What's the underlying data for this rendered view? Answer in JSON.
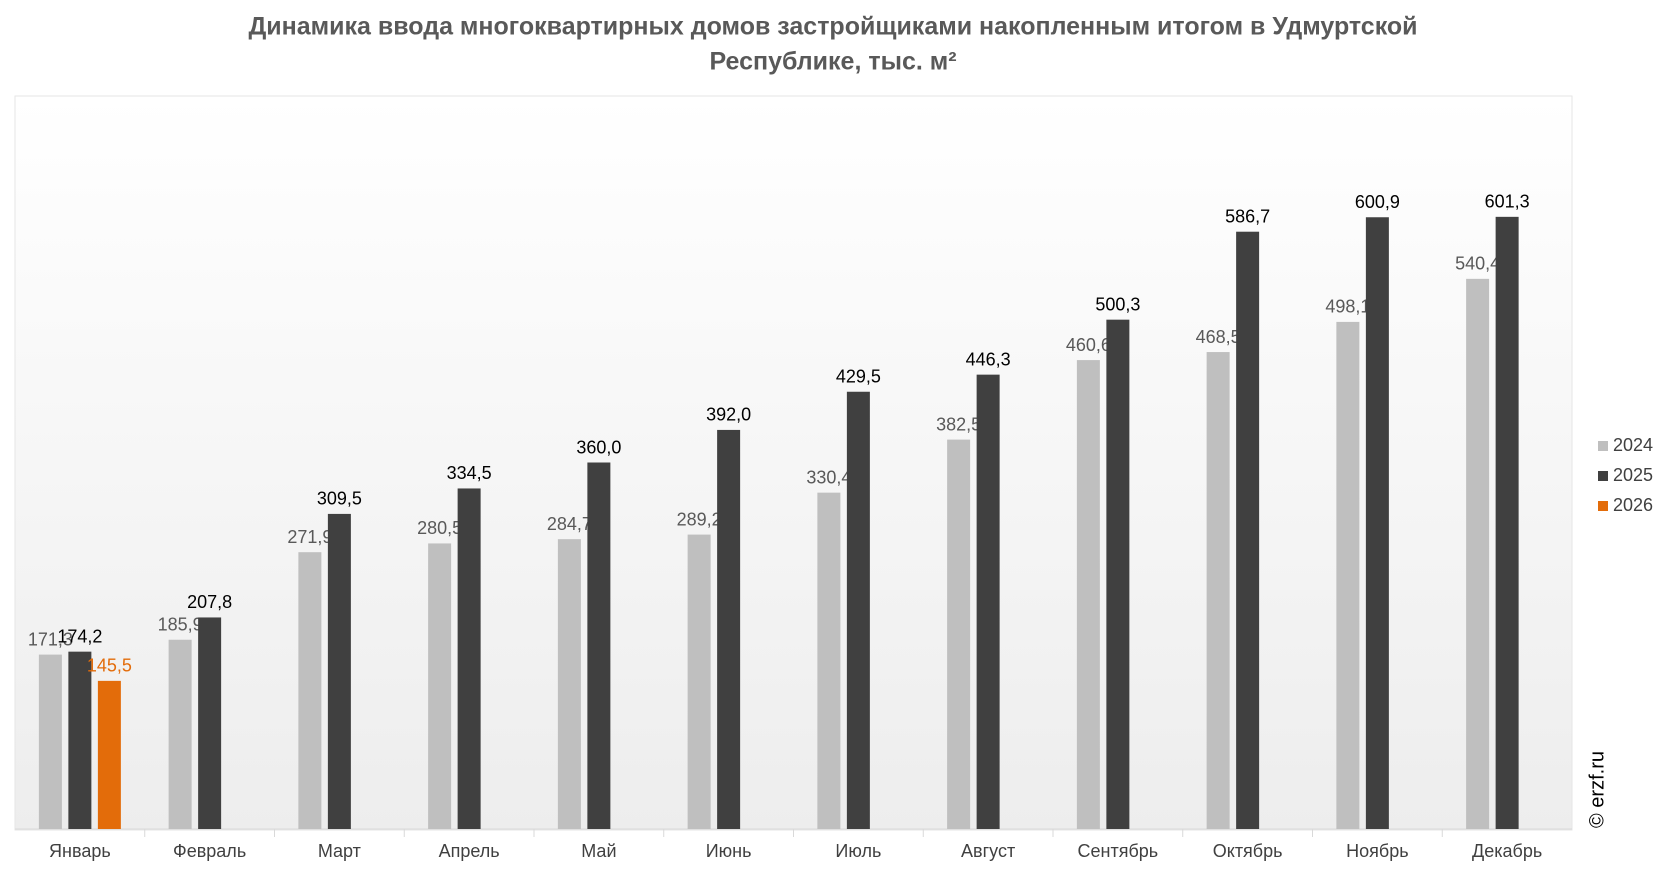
{
  "chart_data": {
    "type": "bar",
    "title": [
      "Динамика ввода многоквартирных домов застройщиками накопленным итогом в Удмуртской",
      "Республике, тыс. м²"
    ],
    "categories": [
      "Январь",
      "Февраль",
      "Март",
      "Апрель",
      "Май",
      "Июнь",
      "Июль",
      "Август",
      "Сентябрь",
      "Октябрь",
      "Ноябрь",
      "Декабрь"
    ],
    "series": [
      {
        "name": "2024",
        "color": "#bfbfbf",
        "values": [
          171.3,
          185.9,
          271.9,
          280.5,
          284.7,
          289.2,
          330.4,
          382.5,
          460.6,
          468.5,
          498.1,
          540.4
        ],
        "value_labels": [
          "171,3",
          "185,9",
          "271,9",
          "280,5",
          "284,7",
          "289,2",
          "330,4",
          "382,5",
          "460,6",
          "468,5",
          "498,1",
          "540,4"
        ]
      },
      {
        "name": "2025",
        "color": "#404040",
        "values": [
          174.2,
          207.8,
          309.5,
          334.5,
          360.0,
          392.0,
          429.5,
          446.3,
          500.3,
          586.7,
          600.9,
          601.3
        ],
        "value_labels": [
          "174,2",
          "207,8",
          "309,5",
          "334,5",
          "360,0",
          "392,0",
          "429,5",
          "446,3",
          "500,3",
          "586,7",
          "600,9",
          "601,3"
        ]
      },
      {
        "name": "2026",
        "color": "#e36c0a",
        "values": [
          145.5,
          null,
          null,
          null,
          null,
          null,
          null,
          null,
          null,
          null,
          null,
          null
        ],
        "value_labels": [
          "145,5",
          null,
          null,
          null,
          null,
          null,
          null,
          null,
          null,
          null,
          null,
          null
        ]
      }
    ],
    "ylim": [
      0,
      720
    ],
    "watermark": "© erzf.ru",
    "legend": "right"
  }
}
